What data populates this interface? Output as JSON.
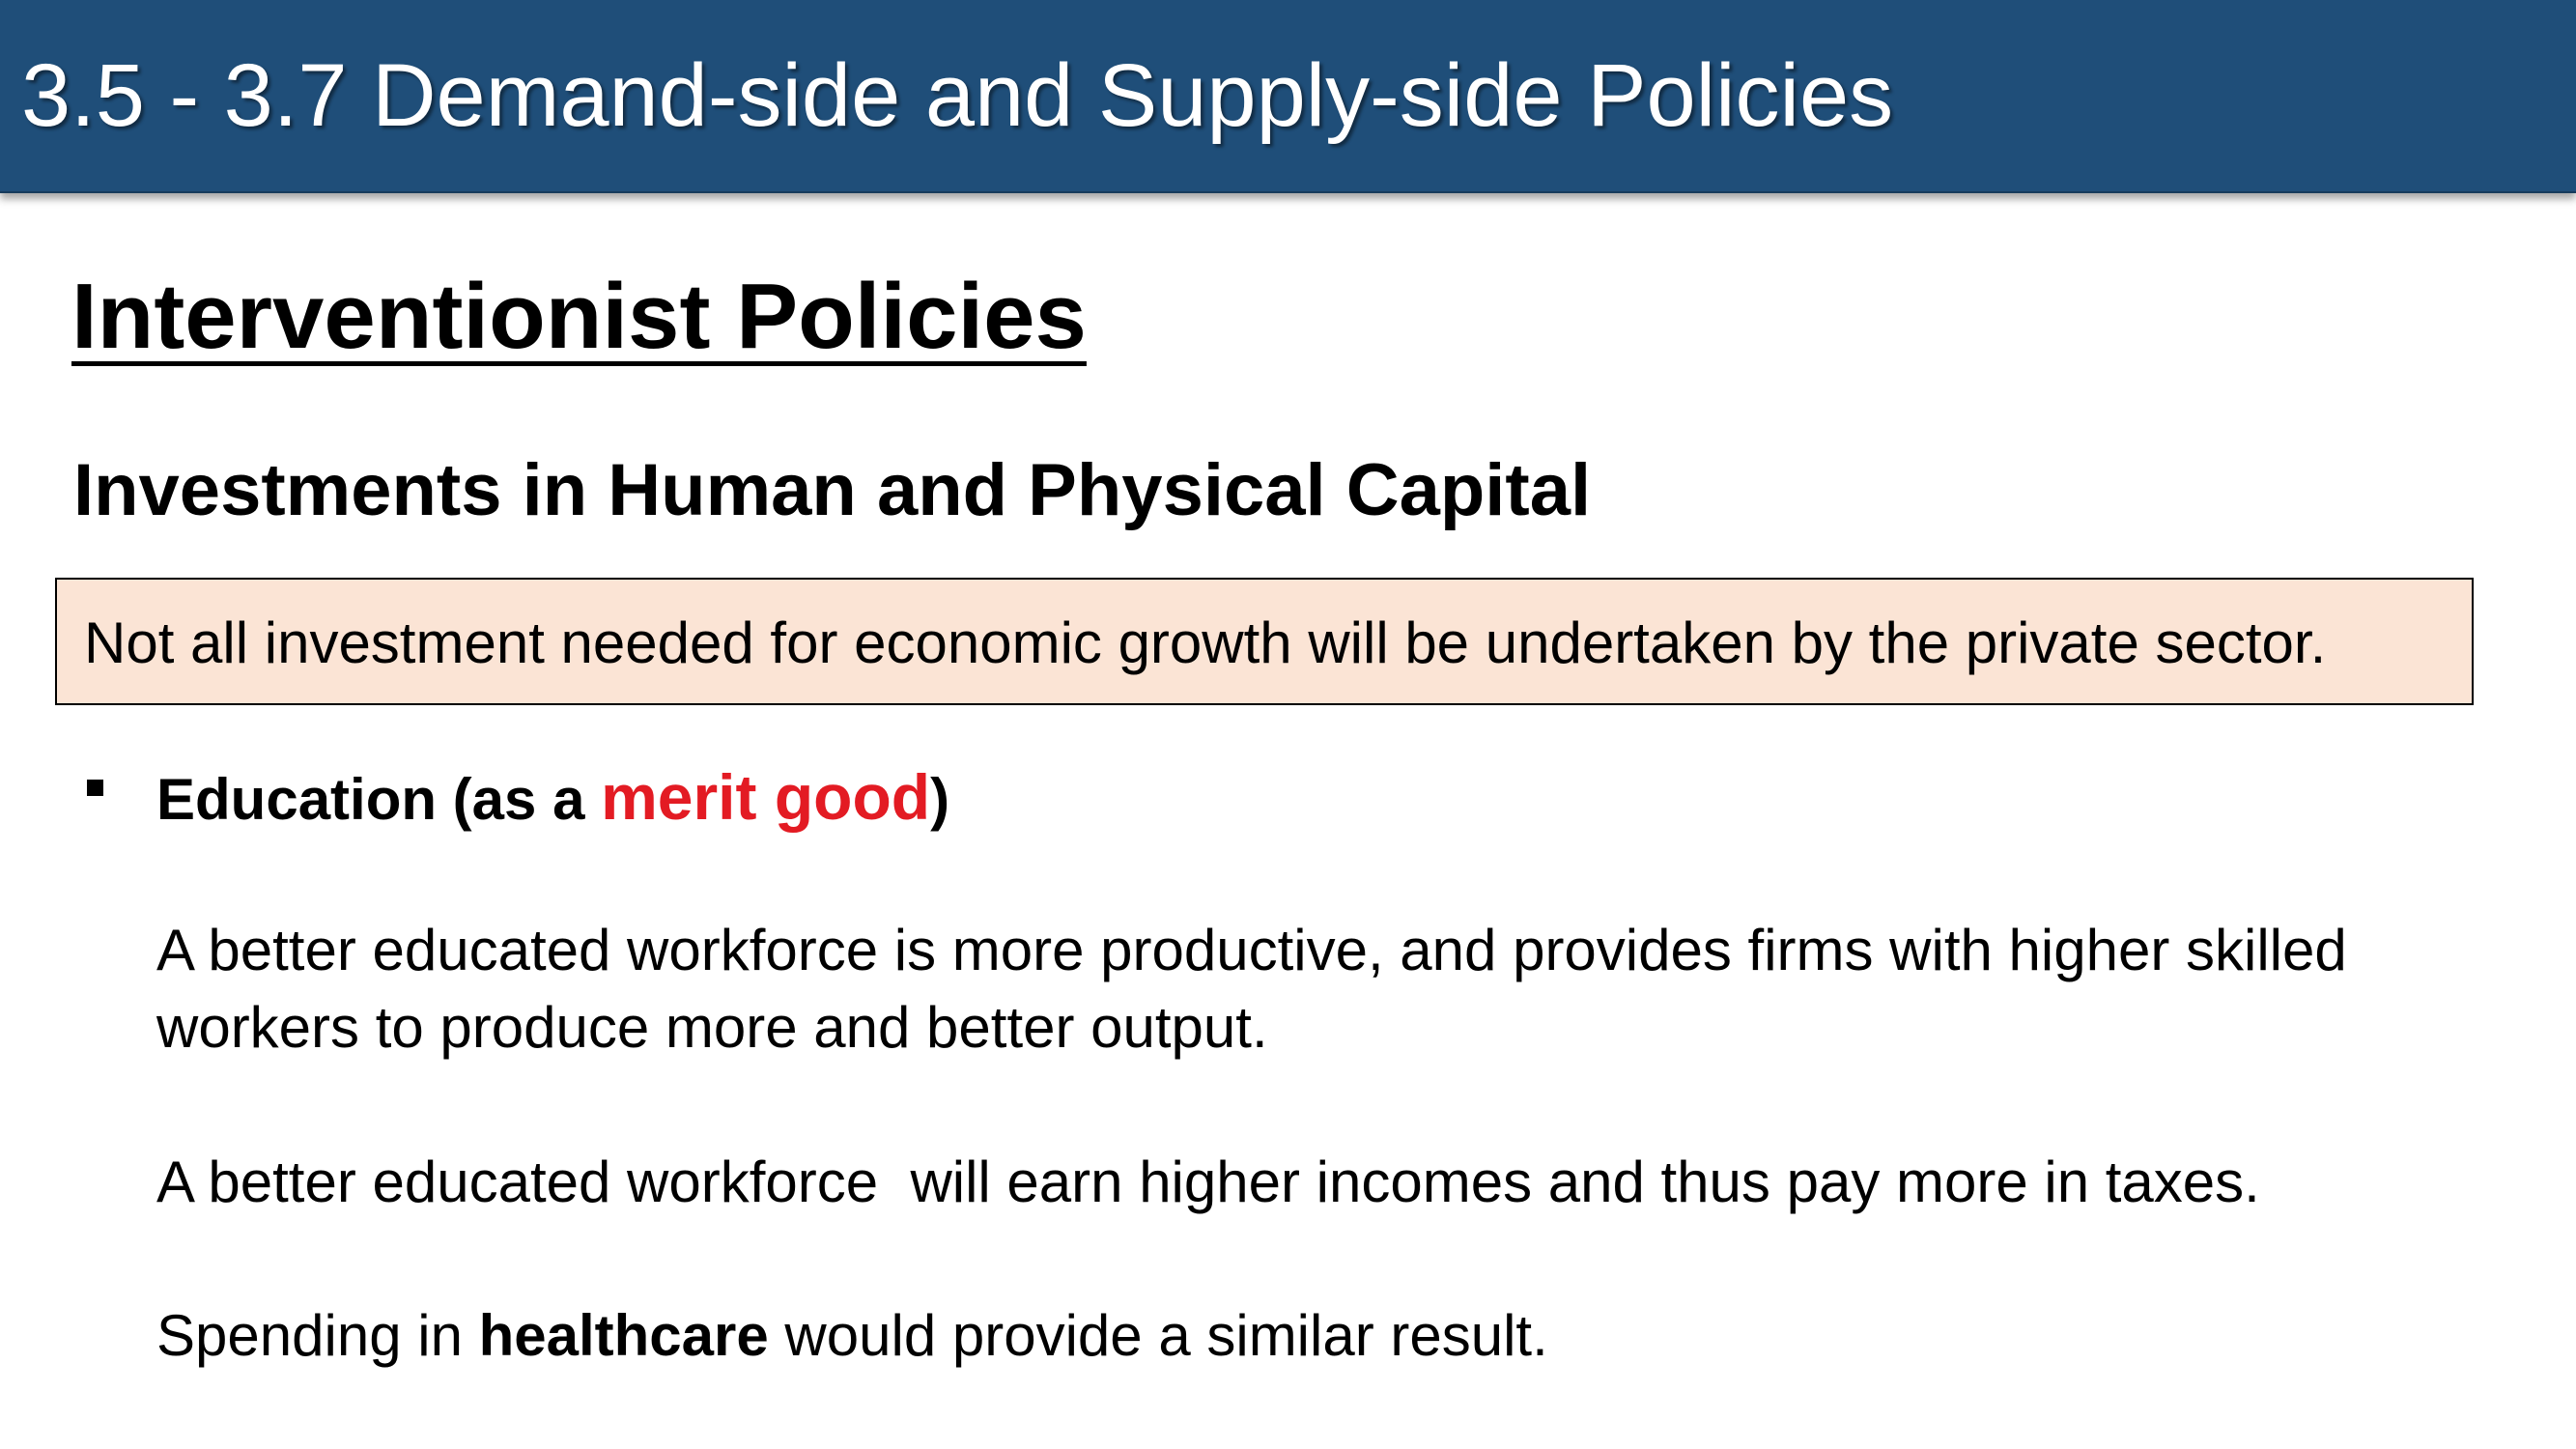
{
  "slide": {
    "title": "3.5 - 3.7 Demand-side and Supply-side Policies",
    "heading": "Interventionist Policies",
    "subheading": "Investments in Human and Physical Capital",
    "callout": "Not all investment needed for economic growth will be undertaken by the private sector.",
    "bullet": {
      "marker": "square-bullet",
      "prefix": "Education (as a ",
      "highlight": "merit good",
      "suffix": ")"
    },
    "paragraphs": {
      "p1_line1": "A better educated workforce is more productive, and provides firms with higher skilled",
      "p1_line2": "workers to produce more and better output.",
      "p2": "A better educated workforce  will earn higher incomes and thus pay more in taxes.",
      "p3_prefix": "Spending in ",
      "p3_bold": "healthcare",
      "p3_suffix": " would provide a similar result."
    },
    "colors": {
      "title_bar": "#1f4e79",
      "callout_background": "#fbe4d5",
      "highlight": "#e31b23"
    }
  }
}
